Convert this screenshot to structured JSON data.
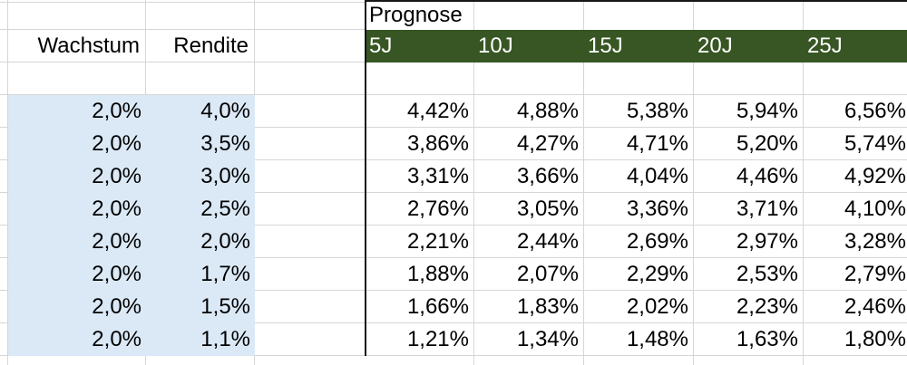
{
  "colors": {
    "header_green": "#375623",
    "left_fill_blue": "#dbe9f6",
    "gridline": "#d6d6d6",
    "divider_black": "#161616",
    "header_text": "#ffffff",
    "body_text": "#000000"
  },
  "sheet": {
    "prognose_label": "Prognose",
    "wachstum_header": "Wachstum",
    "rendite_header": "Rendite",
    "period_headers": [
      "5J",
      "10J",
      "15J",
      "20J",
      "25J"
    ],
    "rows": [
      {
        "wachstum": "2,0%",
        "rendite": "4,0%",
        "prognose": [
          "4,42%",
          "4,88%",
          "5,38%",
          "5,94%",
          "6,56%"
        ]
      },
      {
        "wachstum": "2,0%",
        "rendite": "3,5%",
        "prognose": [
          "3,86%",
          "4,27%",
          "4,71%",
          "5,20%",
          "5,74%"
        ]
      },
      {
        "wachstum": "2,0%",
        "rendite": "3,0%",
        "prognose": [
          "3,31%",
          "3,66%",
          "4,04%",
          "4,46%",
          "4,92%"
        ]
      },
      {
        "wachstum": "2,0%",
        "rendite": "2,5%",
        "prognose": [
          "2,76%",
          "3,05%",
          "3,36%",
          "3,71%",
          "4,10%"
        ]
      },
      {
        "wachstum": "2,0%",
        "rendite": "2,0%",
        "prognose": [
          "2,21%",
          "2,44%",
          "2,69%",
          "2,97%",
          "3,28%"
        ]
      },
      {
        "wachstum": "2,0%",
        "rendite": "1,7%",
        "prognose": [
          "1,88%",
          "2,07%",
          "2,29%",
          "2,53%",
          "2,79%"
        ]
      },
      {
        "wachstum": "2,0%",
        "rendite": "1,5%",
        "prognose": [
          "1,66%",
          "1,83%",
          "2,02%",
          "2,23%",
          "2,46%"
        ]
      },
      {
        "wachstum": "2,0%",
        "rendite": "1,1%",
        "prognose": [
          "1,21%",
          "1,34%",
          "1,48%",
          "1,63%",
          "1,80%"
        ]
      }
    ]
  }
}
